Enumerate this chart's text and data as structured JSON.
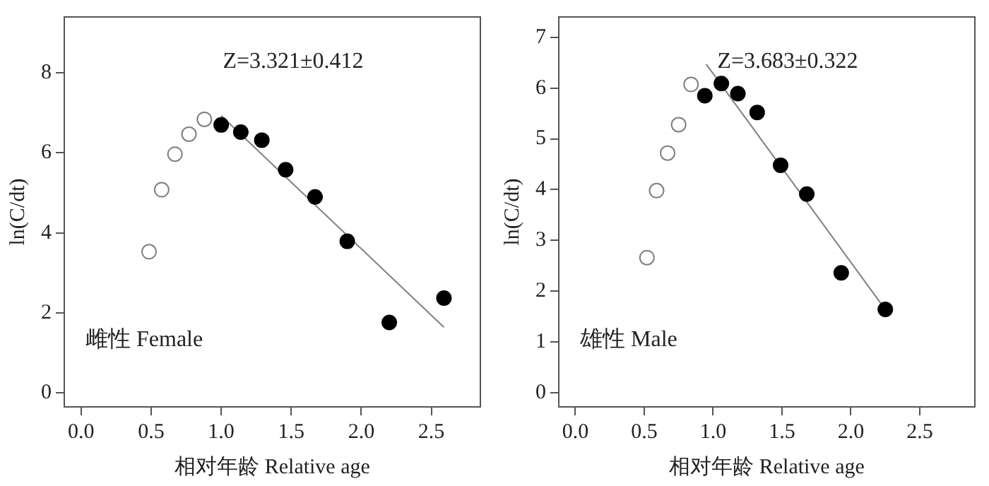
{
  "chart_data": [
    {
      "type": "scatter",
      "xlabel": "相对年龄 Relative age",
      "ylabel": "ln(C/dt)",
      "annotations": [
        "Z=3.321±0.412",
        "雌性 Female"
      ],
      "xlim": [
        -0.12,
        2.85
      ],
      "ylim": [
        -0.35,
        9.4
      ],
      "xticks": [
        {
          "value": 0,
          "label": "0.0"
        },
        {
          "value": 0.5,
          "label": "0.5"
        },
        {
          "value": 1,
          "label": "1.0"
        },
        {
          "value": 1.5,
          "label": "1.5"
        },
        {
          "value": 2,
          "label": "2.0"
        },
        {
          "value": 2.5,
          "label": "2.5"
        }
      ],
      "yticks": [
        0,
        2,
        4,
        6,
        8
      ],
      "grid": false,
      "legend": false,
      "series": [
        {
          "marker": "circle",
          "color": "#808080",
          "x": [
            0.485,
            0.575,
            0.67,
            0.77,
            0.88
          ],
          "values": [
            3.53,
            5.08,
            5.97,
            6.47,
            6.84
          ]
        },
        {
          "marker": "circle",
          "color": "#000000",
          "x": [
            1.0,
            1.14,
            1.29,
            1.46,
            1.67,
            1.9,
            2.2,
            2.59
          ],
          "values": [
            6.7,
            6.52,
            6.32,
            5.58,
            4.9,
            3.79,
            1.76,
            2.37
          ]
        },
        {
          "type": "line",
          "color": "#808080",
          "x": [
            1.0,
            2.59
          ],
          "values": [
            6.93,
            1.64
          ]
        }
      ]
    },
    {
      "type": "scatter",
      "xlabel": "相对年龄 Relative age",
      "ylabel": "ln(C/dt)",
      "annotations": [
        "Z=3.683±0.322",
        "雄性 Male"
      ],
      "xlim": [
        -0.12,
        2.9
      ],
      "ylim": [
        -0.28,
        7.4
      ],
      "xticks": [
        {
          "value": 0,
          "label": "0.0"
        },
        {
          "value": 0.5,
          "label": "0.5"
        },
        {
          "value": 1,
          "label": "1.0"
        },
        {
          "value": 1.5,
          "label": "1.5"
        },
        {
          "value": 2,
          "label": "2.0"
        },
        {
          "value": 2.5,
          "label": "2.5"
        }
      ],
      "yticks": [
        0,
        1,
        2,
        3,
        4,
        5,
        6,
        7
      ],
      "grid": false,
      "legend": false,
      "series": [
        {
          "marker": "circle",
          "color": "#808080",
          "x": [
            0.52,
            0.59,
            0.67,
            0.75,
            0.84
          ],
          "values": [
            2.66,
            3.98,
            4.72,
            5.28,
            6.07
          ]
        },
        {
          "marker": "circle",
          "color": "#000000",
          "x": [
            0.94,
            1.06,
            1.18,
            1.32,
            1.49,
            1.68,
            1.93,
            2.25
          ],
          "values": [
            5.85,
            6.09,
            5.89,
            5.52,
            4.48,
            3.91,
            2.36,
            1.64
          ]
        },
        {
          "type": "line",
          "color": "#808080",
          "x": [
            0.95,
            2.22
          ],
          "values": [
            6.47,
            1.75
          ]
        }
      ]
    }
  ]
}
